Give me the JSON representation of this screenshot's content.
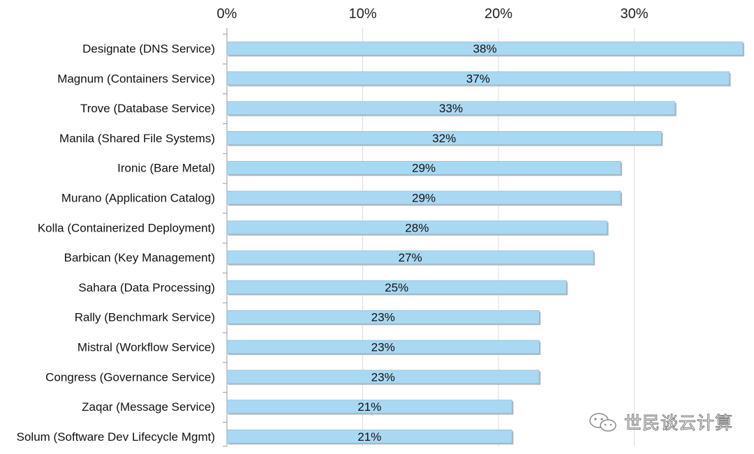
{
  "chart_data": {
    "type": "bar",
    "orientation": "horizontal",
    "title": "",
    "xlabel": "",
    "ylabel": "",
    "xlim": [
      0,
      38
    ],
    "x_ticks": [
      "0%",
      "10%",
      "20%",
      "30%"
    ],
    "x_tick_values": [
      0,
      10,
      20,
      30
    ],
    "grid": true,
    "categories": [
      "Designate (DNS Service)",
      "Magnum (Containers Service)",
      "Trove (Database Service)",
      "Manila (Shared File Systems)",
      "Ironic (Bare Metal)",
      "Murano (Application Catalog)",
      "Kolla (Containerized Deployment)",
      "Barbican (Key Management)",
      "Sahara (Data Processing)",
      "Rally (Benchmark Service)",
      "Mistral (Workflow Service)",
      "Congress (Governance Service)",
      "Zaqar (Message Service)",
      "Solum (Software Dev Lifecycle Mgmt)"
    ],
    "values": [
      38,
      37,
      33,
      32,
      29,
      29,
      28,
      27,
      25,
      23,
      23,
      23,
      21,
      21
    ],
    "value_labels": [
      "38%",
      "37%",
      "33%",
      "32%",
      "29%",
      "29%",
      "28%",
      "27%",
      "25%",
      "23%",
      "23%",
      "23%",
      "21%",
      "21%"
    ],
    "bar_color": "#a9d8f2"
  },
  "watermark": {
    "text": "世民谈云计算",
    "icon": "wechat-icon"
  }
}
